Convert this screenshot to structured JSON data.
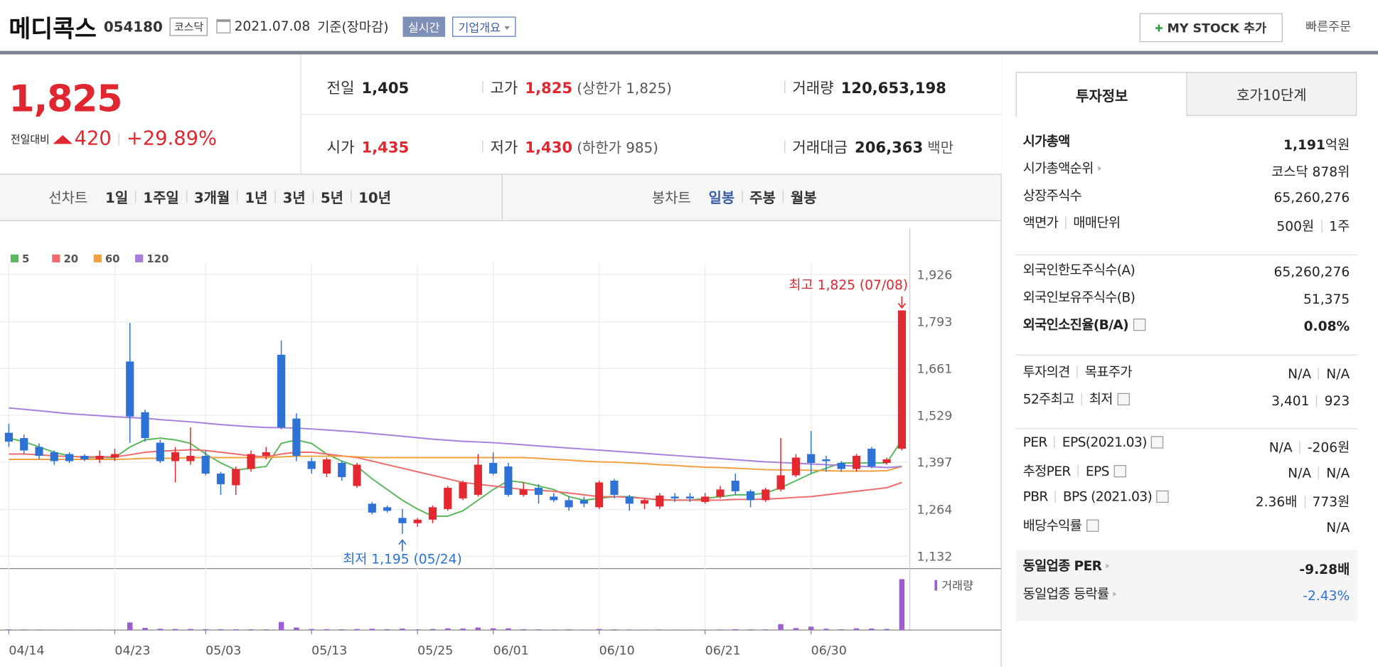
{
  "header": {
    "name": "메디콕스",
    "code": "054180",
    "market": "코스닥",
    "date": "2021.07.08",
    "basis": "기준(장마감)",
    "realtime": "실시간",
    "overview": "기업개요",
    "mystock": "MY STOCK 추가",
    "quick_order": "빠른주문"
  },
  "quote": {
    "price": "1,825",
    "change_label": "전일대비",
    "change": "420",
    "change_pct": "+29.89%"
  },
  "stats": [
    {
      "label": "전일",
      "value": "1,405"
    },
    {
      "label": "고가",
      "value": "1,825",
      "extra": "(상한가 1,825)",
      "color": "#e0272f"
    },
    {
      "label": "거래량",
      "value": "120,653,198"
    },
    {
      "label": "시가",
      "value": "1,435",
      "color": "#e0272f"
    },
    {
      "label": "저가",
      "value": "1,430",
      "extra": "(하한가 985)",
      "color": "#e0272f"
    },
    {
      "label": "거래대금",
      "value": "206,363",
      "extra": "백만"
    }
  ],
  "chart_tabs": {
    "line": "선차트",
    "ranges": [
      "1일",
      "1주일",
      "3개월",
      "1년",
      "3년",
      "5년",
      "10년"
    ],
    "candle": "봉차트",
    "periods": [
      "일봉",
      "주봉",
      "월봉"
    ],
    "active_period": 0
  },
  "chart_data": {
    "type": "candlestick",
    "up_color": "#e3282f",
    "down_color": "#2f72d6",
    "categories": [
      "04/14",
      null,
      null,
      null,
      null,
      null,
      null,
      "04/23",
      null,
      null,
      null,
      null,
      null,
      "05/03",
      null,
      null,
      null,
      null,
      null,
      null,
      "05/13",
      null,
      null,
      null,
      null,
      null,
      null,
      "05/25",
      null,
      null,
      null,
      null,
      "06/01",
      null,
      null,
      null,
      null,
      null,
      null,
      "06/10",
      null,
      null,
      null,
      null,
      null,
      null,
      "06/21",
      null,
      null,
      null,
      null,
      null,
      null,
      "06/30",
      null,
      null,
      null,
      null,
      null,
      null
    ],
    "open": [
      1480,
      1465,
      1440,
      1425,
      1420,
      1415,
      1405,
      1410,
      1681,
      1538,
      1452,
      1400,
      1400,
      1415,
      1365,
      1332,
      1378,
      1415,
      1700,
      1520,
      1400,
      1365,
      1395,
      1330,
      1280,
      1270,
      1240,
      1225,
      1235,
      1265,
      1295,
      1305,
      1395,
      1385,
      1305,
      1325,
      1300,
      1290,
      1290,
      1270,
      1345,
      1300,
      1280,
      1272,
      1300,
      1300,
      1285,
      1300,
      1345,
      1315,
      1290,
      1320,
      1360,
      1420,
      1405,
      1395,
      1378,
      1435,
      1395,
      1435
    ],
    "high": [
      1505,
      1475,
      1450,
      1430,
      1425,
      1420,
      1430,
      1435,
      1790,
      1545,
      1460,
      1440,
      1495,
      1430,
      1370,
      1385,
      1430,
      1440,
      1740,
      1535,
      1410,
      1410,
      1400,
      1395,
      1285,
      1275,
      1265,
      1240,
      1275,
      1330,
      1345,
      1420,
      1425,
      1395,
      1340,
      1335,
      1310,
      1300,
      1300,
      1345,
      1350,
      1305,
      1295,
      1310,
      1310,
      1310,
      1310,
      1330,
      1365,
      1320,
      1325,
      1465,
      1420,
      1485,
      1415,
      1400,
      1420,
      1440,
      1410,
      1825
    ],
    "low": [
      1440,
      1420,
      1405,
      1390,
      1395,
      1400,
      1395,
      1400,
      1452,
      1455,
      1395,
      1340,
      1390,
      1360,
      1305,
      1305,
      1370,
      1405,
      1490,
      1400,
      1365,
      1355,
      1345,
      1325,
      1250,
      1255,
      1195,
      1215,
      1225,
      1260,
      1290,
      1300,
      1360,
      1300,
      1300,
      1280,
      1285,
      1260,
      1270,
      1265,
      1295,
      1260,
      1265,
      1265,
      1285,
      1285,
      1280,
      1295,
      1305,
      1270,
      1285,
      1315,
      1355,
      1365,
      1370,
      1370,
      1370,
      1380,
      1390,
      1430
    ],
    "close": [
      1455,
      1430,
      1415,
      1400,
      1400,
      1405,
      1415,
      1420,
      1526,
      1465,
      1400,
      1425,
      1415,
      1365,
      1335,
      1378,
      1420,
      1425,
      1495,
      1415,
      1378,
      1405,
      1355,
      1390,
      1255,
      1260,
      1225,
      1235,
      1270,
      1325,
      1340,
      1390,
      1365,
      1305,
      1320,
      1305,
      1290,
      1270,
      1280,
      1340,
      1305,
      1280,
      1290,
      1303,
      1295,
      1295,
      1300,
      1320,
      1315,
      1290,
      1320,
      1360,
      1410,
      1395,
      1400,
      1378,
      1415,
      1385,
      1405,
      1825
    ],
    "ma": [
      {
        "name": "5",
        "color": "#5cb85c",
        "values": [
          1465,
          1455,
          1440,
          1425,
          1415,
          1410,
          1410,
          1410,
          1440,
          1460,
          1465,
          1460,
          1450,
          1420,
          1395,
          1375,
          1380,
          1385,
          1450,
          1460,
          1450,
          1420,
          1400,
          1385,
          1350,
          1320,
          1290,
          1265,
          1245,
          1245,
          1260,
          1290,
          1320,
          1345,
          1340,
          1330,
          1320,
          1300,
          1290,
          1295,
          1300,
          1300,
          1295,
          1290,
          1290,
          1290,
          1295,
          1300,
          1305,
          1305,
          1310,
          1325,
          1345,
          1365,
          1380,
          1395,
          1395,
          1395,
          1395,
          1460
        ]
      },
      {
        "name": "20",
        "color": "#ef6b6b",
        "values": [
          1420,
          1420,
          1418,
          1415,
          1413,
          1412,
          1412,
          1412,
          1418,
          1425,
          1428,
          1430,
          1432,
          1430,
          1425,
          1420,
          1415,
          1412,
          1420,
          1425,
          1425,
          1420,
          1415,
          1410,
          1400,
          1390,
          1380,
          1370,
          1360,
          1350,
          1340,
          1335,
          1330,
          1325,
          1320,
          1318,
          1315,
          1310,
          1305,
          1300,
          1300,
          1298,
          1295,
          1292,
          1290,
          1290,
          1290,
          1290,
          1292,
          1292,
          1293,
          1295,
          1298,
          1300,
          1305,
          1310,
          1315,
          1320,
          1325,
          1340
        ]
      },
      {
        "name": "60",
        "color": "#f0a040",
        "values": [
          1405,
          1405,
          1405,
          1405,
          1405,
          1405,
          1405,
          1405,
          1406,
          1408,
          1408,
          1408,
          1410,
          1410,
          1410,
          1410,
          1410,
          1410,
          1412,
          1414,
          1414,
          1414,
          1414,
          1412,
          1410,
          1410,
          1410,
          1410,
          1410,
          1410,
          1410,
          1410,
          1410,
          1410,
          1410,
          1408,
          1405,
          1403,
          1400,
          1398,
          1397,
          1395,
          1393,
          1390,
          1388,
          1385,
          1383,
          1382,
          1380,
          1378,
          1376,
          1375,
          1375,
          1374,
          1373,
          1372,
          1372,
          1372,
          1373,
          1385
        ]
      },
      {
        "name": "120",
        "color": "#a77fdc",
        "values": [
          1550,
          1546,
          1542,
          1538,
          1534,
          1531,
          1528,
          1525,
          1523,
          1521,
          1517,
          1514,
          1511,
          1507,
          1503,
          1500,
          1497,
          1495,
          1494,
          1493,
          1491,
          1488,
          1485,
          1482,
          1478,
          1474,
          1470,
          1466,
          1462,
          1459,
          1456,
          1454,
          1452,
          1449,
          1446,
          1443,
          1440,
          1437,
          1434,
          1431,
          1428,
          1425,
          1422,
          1419,
          1416,
          1413,
          1410,
          1407,
          1404,
          1401,
          1398,
          1396,
          1394,
          1392,
          1390,
          1388,
          1386,
          1384,
          1382,
          1385
        ]
      }
    ],
    "ylim": [
      1097,
      1958
    ],
    "yticks": [
      {
        "value": 1132,
        "label": "1,132"
      },
      {
        "value": 1264,
        "label": "1,264"
      },
      {
        "value": 1397,
        "label": "1,397"
      },
      {
        "value": 1529,
        "label": "1,529"
      },
      {
        "value": 1661,
        "label": "1,661"
      },
      {
        "value": 1793,
        "label": "1,793"
      },
      {
        "value": 1926,
        "label": "1,926"
      }
    ],
    "grid": true,
    "volume_label": "거래량",
    "volume_color": "#9a5fd0",
    "volume": [
      1500000,
      1200000,
      1000000,
      900000,
      900000,
      800000,
      800000,
      900000,
      18000000,
      5000000,
      3000000,
      2500000,
      2500000,
      2000000,
      2000000,
      1800000,
      1800000,
      1500000,
      19000000,
      6000000,
      2500000,
      2000000,
      1800000,
      2500000,
      3000000,
      2000000,
      3500000,
      1500000,
      2500000,
      4000000,
      3500000,
      6000000,
      4000000,
      4000000,
      2000000,
      1500000,
      1200000,
      1500000,
      1000000,
      2500000,
      1500000,
      1200000,
      1000000,
      1200000,
      900000,
      900000,
      1000000,
      1200000,
      2000000,
      1500000,
      1500000,
      14000000,
      4500000,
      8000000,
      3000000,
      1800000,
      4000000,
      3500000,
      2500000,
      120653198
    ],
    "annotations": [
      {
        "text": "최고 1,825 (07/08)",
        "index": 59,
        "value": 1825,
        "color": "#e0272f"
      },
      {
        "text": "최저 1,195 (05/24)",
        "index": 26,
        "value": 1195,
        "color": "#2f72d6"
      }
    ]
  },
  "info": {
    "tabs": [
      "투자정보",
      "호가10단계"
    ],
    "sections": [
      [
        {
          "label": [
            "시가총액"
          ],
          "value": [
            "1,191"
          ],
          "unit": "억원",
          "bold": true
        },
        {
          "label": [
            "시가총액순위"
          ],
          "value": [
            "코스닥 878위"
          ],
          "arrow": true
        },
        {
          "label": [
            "상장주식수"
          ],
          "value": [
            "65,260,276"
          ]
        },
        {
          "label": [
            "액면가",
            "매매단위"
          ],
          "value": [
            "500원",
            "1주"
          ]
        }
      ],
      [
        {
          "label": [
            "외국인한도주식수(A)"
          ],
          "value": [
            "65,260,276"
          ]
        },
        {
          "label": [
            "외국인보유주식수(B)"
          ],
          "value": [
            "51,375"
          ]
        },
        {
          "label": [
            "외국인소진율(B/A)"
          ],
          "value": [
            "0.08%"
          ],
          "bold": true,
          "help": true
        }
      ],
      [
        {
          "label": [
            "투자의견",
            "목표주가"
          ],
          "value": [
            "N/A",
            "N/A"
          ]
        },
        {
          "label": [
            "52주최고",
            "최저"
          ],
          "value": [
            "3,401",
            "923"
          ],
          "help": true
        }
      ],
      [
        {
          "label": [
            "PER",
            "EPS(2021.03)"
          ],
          "value": [
            "N/A",
            "-206원"
          ],
          "help": true
        },
        {
          "label": [
            "추정PER",
            "EPS"
          ],
          "value": [
            "N/A",
            "N/A"
          ],
          "help": true
        },
        {
          "label": [
            "PBR",
            "BPS (2021.03)"
          ],
          "value": [
            "2.36배",
            "773원"
          ],
          "help": true
        },
        {
          "label": [
            "배당수익률"
          ],
          "value": [
            "N/A"
          ],
          "help": true
        }
      ],
      [
        {
          "label": [
            "동일업종 PER"
          ],
          "value": [
            "-9.28배"
          ],
          "bold": true,
          "arrow": true
        },
        {
          "label": [
            "동일업종 등락률"
          ],
          "value": [
            "-2.43%"
          ],
          "arrow": true,
          "color": "#2f72d6"
        }
      ]
    ]
  }
}
